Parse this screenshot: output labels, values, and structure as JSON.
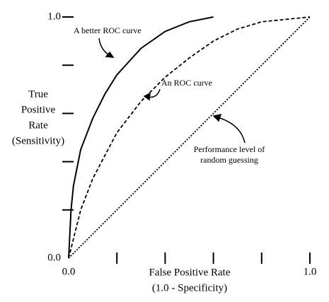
{
  "chart_data": {
    "type": "line",
    "ylabel": [
      "True",
      "Positive",
      "Rate",
      "(Sensitivity)"
    ],
    "xlabel": [
      "False Positive Rate",
      "(1.0 - Specificity)"
    ],
    "xlim": [
      0,
      1
    ],
    "ylim": [
      0,
      1
    ],
    "xticks": [
      {
        "value": 0,
        "label": "0.0"
      },
      {
        "value": 0.2,
        "label": null
      },
      {
        "value": 0.4,
        "label": null
      },
      {
        "value": 0.6,
        "label": null
      },
      {
        "value": 0.8,
        "label": null
      },
      {
        "value": 1,
        "label": "1.0"
      }
    ],
    "yticks": [
      {
        "value": 0,
        "label": "0.0"
      },
      {
        "value": 0.2,
        "label": null
      },
      {
        "value": 0.4,
        "label": null
      },
      {
        "value": 0.6,
        "label": null
      },
      {
        "value": 0.8,
        "label": null
      },
      {
        "value": 1,
        "label": "1.0"
      }
    ],
    "series": [
      {
        "color": "#000000",
        "style": "solid",
        "x": [
          0,
          0.01,
          0.02,
          0.05,
          0.1,
          0.15,
          0.2,
          0.3,
          0.4,
          0.5,
          0.6
        ],
        "values": [
          0,
          0.2,
          0.3,
          0.45,
          0.58,
          0.68,
          0.76,
          0.87,
          0.94,
          0.98,
          1
        ]
      },
      {
        "color": "#000000",
        "style": "dashed",
        "x": [
          0,
          0.05,
          0.1,
          0.2,
          0.3,
          0.4,
          0.5,
          0.6,
          0.7,
          0.8,
          0.9,
          1
        ],
        "values": [
          0,
          0.2,
          0.33,
          0.52,
          0.65,
          0.75,
          0.83,
          0.9,
          0.95,
          0.98,
          0.99,
          1
        ]
      },
      {
        "color": "#000000",
        "style": "dotted",
        "x": [
          0,
          1
        ],
        "values": [
          0,
          1
        ]
      }
    ],
    "annotations": [
      [
        "A better ROC curve"
      ],
      [
        "An ROC curve"
      ],
      [
        "Performance level of",
        "random guessing"
      ]
    ]
  }
}
